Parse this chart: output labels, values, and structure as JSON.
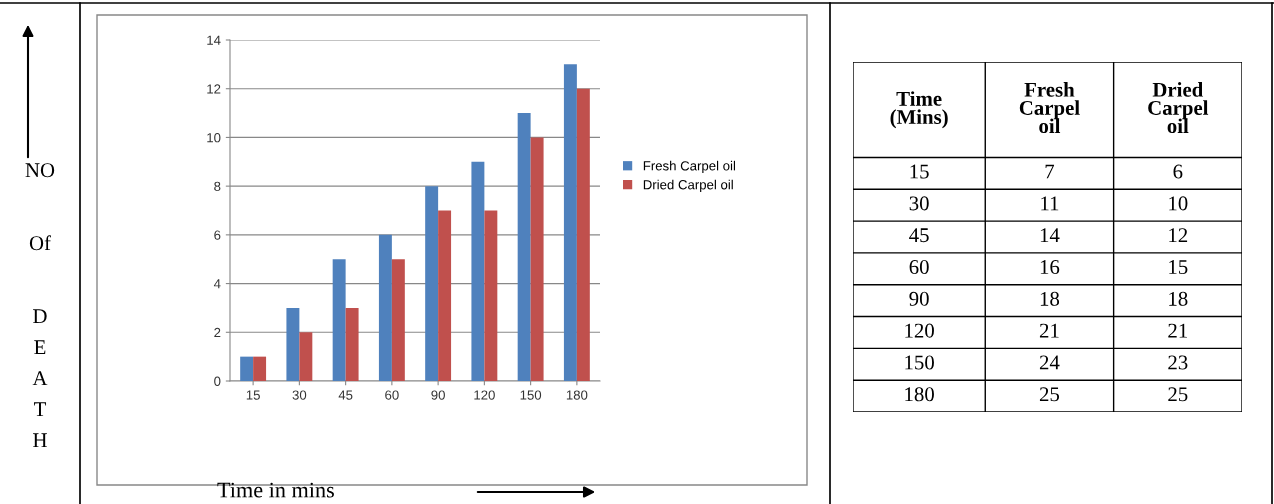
{
  "chart_data": [
    {
      "type": "bar",
      "ylabel": "NO Of DEATH",
      "xlabel": "Time in mins",
      "categories": [
        "15",
        "30",
        "45",
        "60",
        "90",
        "120",
        "150",
        "180"
      ],
      "series": [
        {
          "name": "Fresh Carpel oil",
          "color": "#4f81bd",
          "values": [
            1,
            3,
            5,
            6,
            8,
            9,
            11,
            13
          ]
        },
        {
          "name": "Dried Carpel oil",
          "color": "#c0504d",
          "values": [
            1,
            2,
            3,
            5,
            7,
            7,
            10,
            12
          ]
        }
      ],
      "ylim": [
        0,
        14
      ],
      "yticks": [
        0,
        2,
        4,
        6,
        8,
        10,
        12,
        14
      ],
      "grid": "y",
      "legend": "right"
    },
    {
      "type": "other",
      "categories": [
        "Time\n(Mins)",
        "Fresh\nCarpel\noil",
        "Dried\nCarpel\noil"
      ],
      "annotations": [
        "15",
        "7",
        "6",
        "30",
        "11",
        "10",
        "45",
        "14",
        "12",
        "60",
        "16",
        "15",
        "90",
        "18",
        "18",
        "120",
        "21",
        "21",
        "150",
        "24",
        "23",
        "180",
        "25",
        "25"
      ]
    }
  ]
}
